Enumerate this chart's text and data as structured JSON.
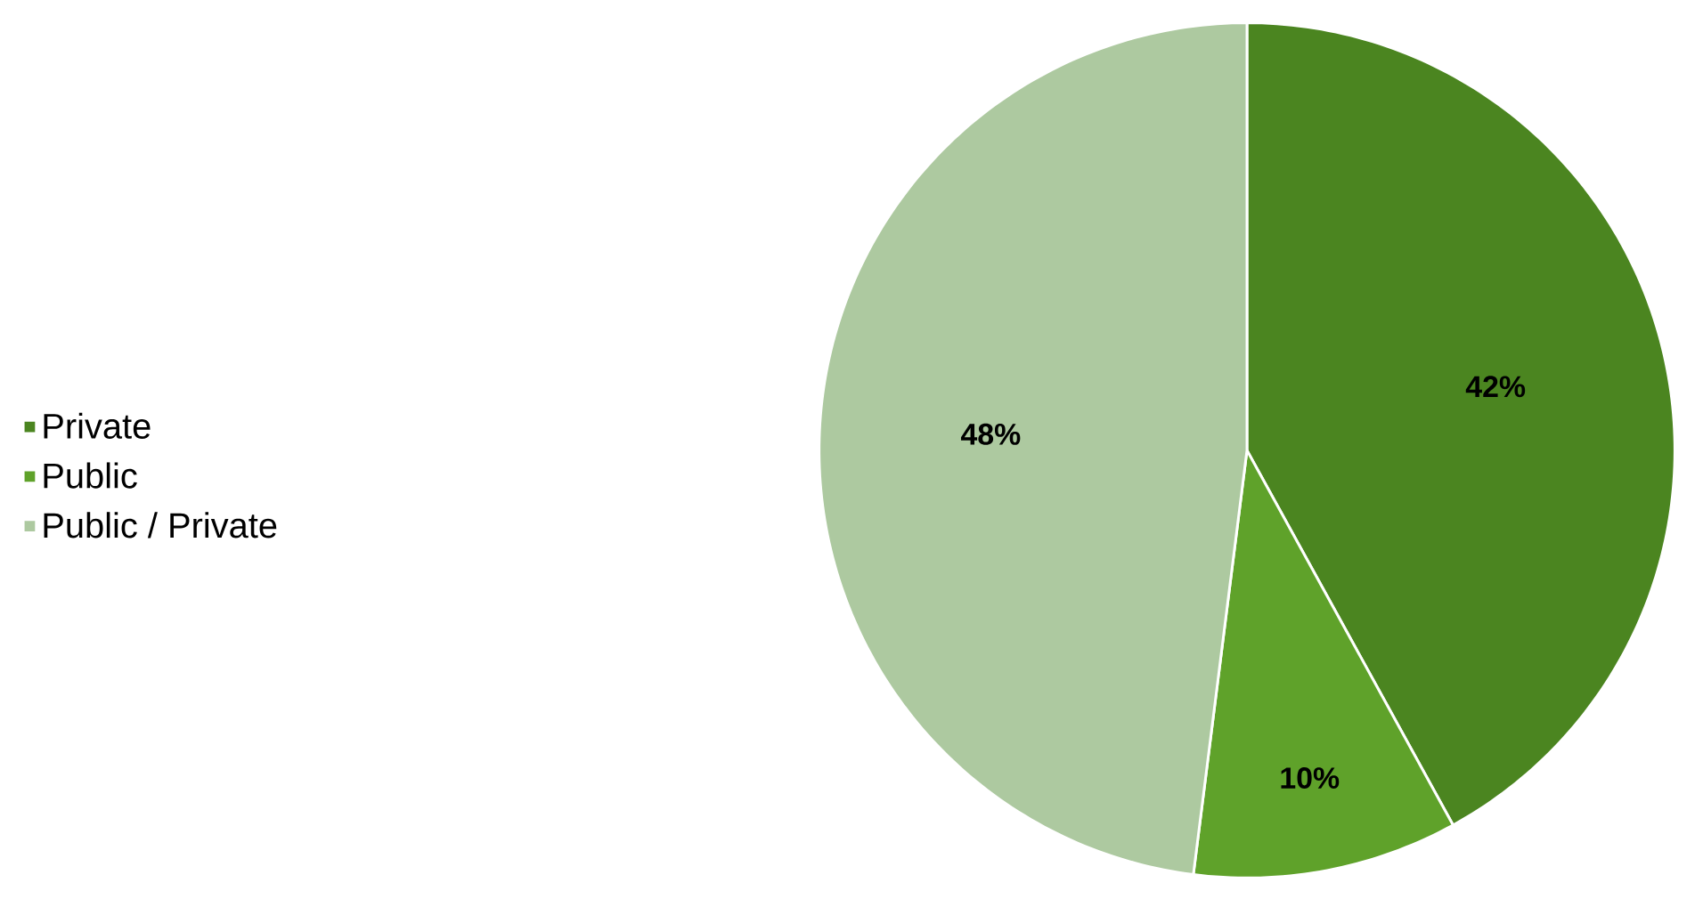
{
  "chart_data": {
    "type": "pie",
    "categories": [
      "Private",
      "Public",
      "Public / Private"
    ],
    "values": [
      42,
      10,
      48
    ],
    "colors": [
      "#4b8520",
      "#5fa22a",
      "#adc9a0"
    ],
    "value_labels": [
      "42%",
      "10%",
      "48%"
    ],
    "legend": "left"
  }
}
